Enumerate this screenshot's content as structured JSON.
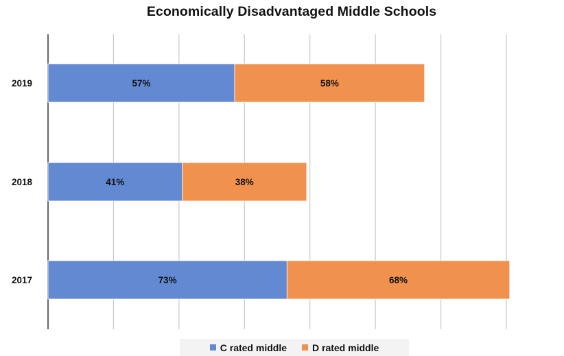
{
  "chart_data": {
    "type": "bar",
    "orientation": "horizontal",
    "stacked": true,
    "title": "Economically Disadvantaged Middle Schools",
    "categories": [
      "2019",
      "2018",
      "2017"
    ],
    "series": [
      {
        "name": "C rated middle",
        "values": [
          57,
          41,
          73
        ],
        "labels": [
          "57%",
          "41%",
          "73%"
        ],
        "color": "#6389d2"
      },
      {
        "name": "D rated middle",
        "values": [
          58,
          38,
          68
        ],
        "labels": [
          "58%",
          "38%",
          "68%"
        ],
        "color": "#f0924e"
      }
    ],
    "xlim": [
      0,
      140
    ],
    "grid": true,
    "legend_position": "bottom"
  }
}
